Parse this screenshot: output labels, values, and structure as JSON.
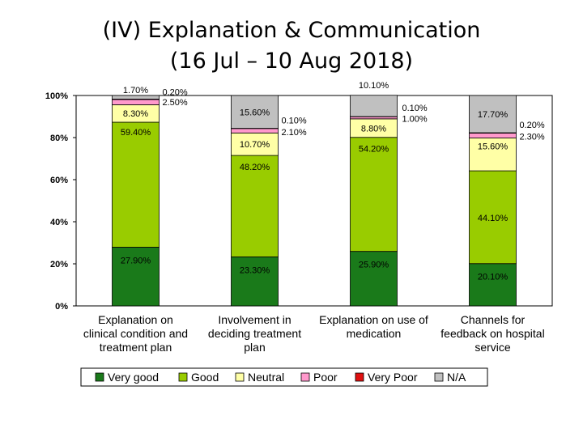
{
  "title_line1": "(IV) Explanation & Communication",
  "title_line2": "(16 Jul – 10 Aug 2018)",
  "colors": {
    "Very good": "#1a7a1a",
    "Good": "#99cc00",
    "Neutral": "#ffffa6",
    "Poor": "#ff99cc",
    "Very Poor": "#e01010",
    "N/A": "#c0c0c0"
  },
  "chart_data": {
    "type": "bar",
    "stacked": true,
    "categories": [
      [
        "Explanation on",
        "clinical condition and",
        "treatment plan"
      ],
      [
        "Involvement in",
        "deciding treatment",
        "plan"
      ],
      [
        "Explanation on use of",
        "medication"
      ],
      [
        "Channels for",
        "feedback on hospital",
        "service"
      ]
    ],
    "series": [
      {
        "name": "Very good",
        "values": [
          27.9,
          23.3,
          25.9,
          20.1
        ],
        "labels": [
          "27.90%",
          "23.30%",
          "25.90%",
          "20.10%"
        ]
      },
      {
        "name": "Good",
        "values": [
          59.4,
          48.2,
          54.2,
          44.1
        ],
        "labels": [
          "59.40%",
          "48.20%",
          "54.20%",
          "44.10%"
        ]
      },
      {
        "name": "Neutral",
        "values": [
          8.3,
          10.7,
          8.8,
          15.6
        ],
        "labels": [
          "8.30%",
          "10.70%",
          "8.80%",
          "15.60%"
        ]
      },
      {
        "name": "Poor",
        "values": [
          2.5,
          2.1,
          1.0,
          2.3
        ],
        "labels": [
          "2.50%",
          "2.10%",
          "1.00%",
          "2.30%"
        ]
      },
      {
        "name": "Very Poor",
        "values": [
          0.2,
          0.1,
          0.1,
          0.2
        ],
        "labels": [
          "0.20%",
          "0.10%",
          "0.10%",
          "0.20%"
        ]
      },
      {
        "name": "N/A",
        "values": [
          1.7,
          15.6,
          10.1,
          17.7
        ],
        "labels": [
          "1.70%",
          "15.60%",
          "10.10%",
          "17.70%"
        ]
      }
    ],
    "yticks": [
      "0%",
      "20%",
      "40%",
      "60%",
      "80%",
      "100%"
    ],
    "ylim": [
      0,
      100
    ],
    "legend_position": "bottom"
  }
}
